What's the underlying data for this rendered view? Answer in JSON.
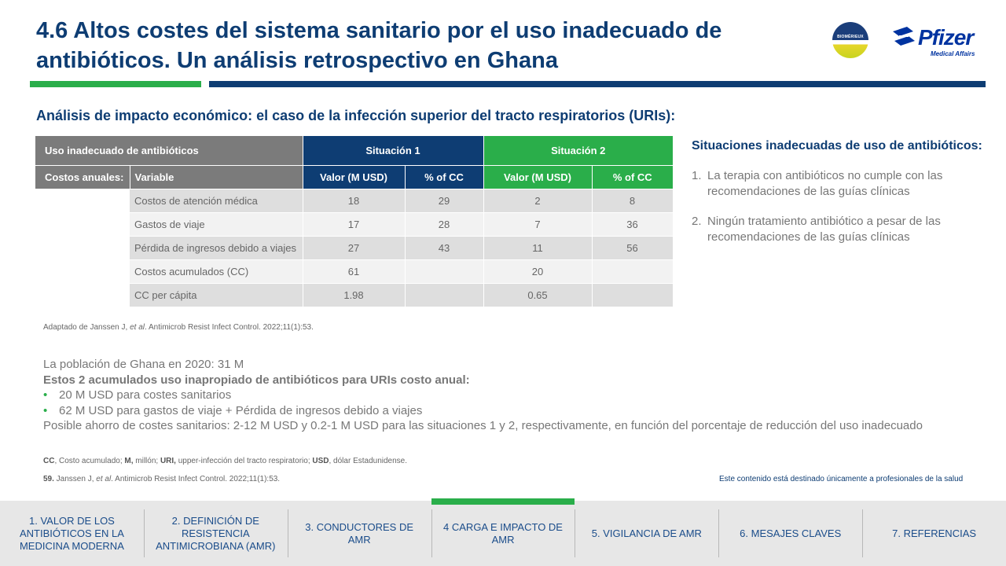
{
  "title": "4.6 Altos costes del sistema sanitario por el uso inadecuado de antibióticos. Un análisis retrospectivo en Ghana",
  "logos": {
    "biomerieux": "BIOMÉRIEUX",
    "pfizer": "Pfizer",
    "pfizer_sub": "Medical Affairs"
  },
  "subtitle": "Análisis de impacto económico: el caso de la infección superior del tracto respiratorios (URIs):",
  "table": {
    "header_uso": "Uso inadecuado de antibióticos",
    "situacion1": "Situación 1",
    "situacion2": "Situación 2",
    "costos_anuales": "Costos anuales:",
    "variable": "Variable",
    "col_valor": "Valor (M USD)",
    "col_pct": "% of CC",
    "rows": [
      {
        "label": "Costos de atención médica",
        "v1": "18",
        "p1": "29",
        "v2": "2",
        "p2": "8"
      },
      {
        "label": "Gastos de viaje",
        "v1": "17",
        "p1": "28",
        "v2": "7",
        "p2": "36"
      },
      {
        "label": "Pérdida de ingresos debido a viajes",
        "v1": "27",
        "p1": "43",
        "v2": "11",
        "p2": "56"
      },
      {
        "label": "Costos acumulados (CC)",
        "v1": "61",
        "p1": "",
        "v2": "20",
        "p2": ""
      },
      {
        "label": "CC per cápita",
        "v1": "1.98",
        "p1": "",
        "v2": "0.65",
        "p2": ""
      }
    ]
  },
  "side": {
    "title": "Situaciones inadecuadas de uso de antibióticos:",
    "items": [
      {
        "n": "1.",
        "text": "La terapia con antibióticos no cumple con las recomendaciones de las guías clínicas"
      },
      {
        "n": "2.",
        "text": "Ningún tratamiento antibiótico a pesar de las recomendaciones de las guías clínicas"
      }
    ]
  },
  "source": {
    "pre": "Adaptado de Janssen J, ",
    "etal": "et al",
    "post": ". Antimicrob Resist Infect Control. 2022;11(1):53."
  },
  "summary": {
    "line1": "La población de Ghana en 2020: 31 M",
    "line2": "Estos 2 acumulados uso inapropiado de antibióticos para URIs costo anual:",
    "bullets": [
      "20 M USD para costes sanitarios",
      "62 M USD para gastos de viaje + Pérdida de ingresos debido a viajes"
    ],
    "line3": "Posible ahorro de costes sanitarios: 2-12 M USD y 0.2-1 M USD para las situaciones 1 y 2, respectivamente, en función del porcentaje de reducción del uso inadecuado"
  },
  "abbreviations": [
    {
      "abbr": "CC",
      "def": ", Costo acumulado; "
    },
    {
      "abbr": "M,",
      "def": " millón; "
    },
    {
      "abbr": "URI,",
      "def": " upper-infección del tracto respiratorio; "
    },
    {
      "abbr": "USD",
      "def": ", dólar Estadunidense."
    }
  ],
  "reference": {
    "num": "59.",
    "pre": " Janssen J, ",
    "etal": "et al",
    "post": ". Antimicrob Resist Infect Control. 2022;11(1):53."
  },
  "hcp_note": "Este contenido está destinado únicamente a profesionales de la salud",
  "nav": [
    {
      "label": "1. VALOR DE LOS ANTIBIÓTICOS EN LA MEDICINA MODERNA",
      "active": false
    },
    {
      "label": "2. DEFINICIÓN DE RESISTENCIA ANTIMICROBIANA (AMR)",
      "active": false
    },
    {
      "label": "3. CONDUCTORES DE AMR",
      "active": false
    },
    {
      "label": "4 CARGA E IMPACTO DE AMR",
      "active": true
    },
    {
      "label": "5. VIGILANCIA DE AMR",
      "active": false
    },
    {
      "label": "6. MESAJES CLAVES",
      "active": false
    },
    {
      "label": "7. REFERENCIAS",
      "active": false
    }
  ],
  "colors": {
    "brand_blue": "#0e3d73",
    "brand_green": "#2aae4a",
    "header_grey": "#7b7b7b"
  }
}
